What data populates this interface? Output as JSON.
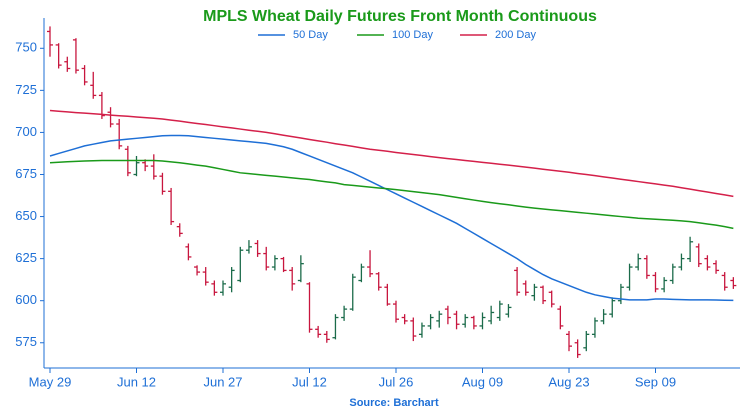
{
  "chart_data": {
    "type": "ohlc",
    "title": "MPLS Wheat Daily Futures Front Month Continuous",
    "source": "Source: Barchart",
    "categories": [
      "May 29",
      null,
      null,
      null,
      null,
      null,
      null,
      null,
      null,
      null,
      "Jun 12",
      null,
      null,
      null,
      null,
      null,
      null,
      null,
      null,
      null,
      "Jun 27",
      null,
      null,
      null,
      null,
      null,
      null,
      null,
      null,
      null,
      "Jul 12",
      null,
      null,
      null,
      null,
      null,
      null,
      null,
      null,
      null,
      "Jul 26",
      null,
      null,
      null,
      null,
      null,
      null,
      null,
      null,
      null,
      "Aug 09",
      null,
      null,
      null,
      null,
      null,
      null,
      null,
      null,
      null,
      "Aug 23",
      null,
      null,
      null,
      null,
      null,
      null,
      null,
      null,
      null,
      "Sep 09",
      null,
      null,
      null,
      null,
      null,
      null,
      null,
      null,
      null
    ],
    "open": [
      760,
      752,
      742,
      755,
      738,
      728,
      722,
      712,
      705,
      690,
      675,
      682,
      680,
      674,
      665,
      644,
      632,
      620,
      617,
      610,
      605,
      608,
      612,
      630,
      634,
      628,
      620,
      625,
      618,
      612,
      610,
      583,
      580,
      578,
      590,
      595,
      612,
      620,
      616,
      608,
      598,
      590,
      588,
      580,
      585,
      588,
      595,
      592,
      586,
      590,
      585,
      588,
      590,
      592,
      618,
      610,
      603,
      608,
      605,
      595,
      580,
      575,
      572,
      580,
      588,
      592,
      600,
      608,
      620,
      625,
      615,
      607,
      612,
      620,
      625,
      632,
      625,
      622,
      615,
      612
    ],
    "high": [
      763,
      753,
      745,
      756,
      740,
      736,
      724,
      715,
      708,
      692,
      686,
      684,
      687,
      676,
      667,
      646,
      634,
      621,
      620,
      612,
      612,
      620,
      632,
      636,
      636,
      632,
      627,
      626,
      620,
      627,
      611,
      585,
      582,
      592,
      597,
      616,
      622,
      630,
      617,
      610,
      600,
      592,
      590,
      587,
      592,
      594,
      597,
      594,
      592,
      591,
      593,
      597,
      600,
      598,
      620,
      612,
      610,
      609,
      606,
      597,
      582,
      577,
      582,
      590,
      595,
      602,
      610,
      622,
      628,
      627,
      617,
      614,
      622,
      628,
      638,
      634,
      627,
      624,
      617,
      614
    ],
    "low": [
      745,
      738,
      736,
      735,
      728,
      720,
      708,
      703,
      690,
      674,
      674,
      677,
      672,
      663,
      645,
      638,
      624,
      615,
      609,
      603,
      603,
      605,
      611,
      628,
      626,
      618,
      618,
      617,
      606,
      611,
      581,
      578,
      575,
      577,
      588,
      594,
      611,
      614,
      606,
      597,
      587,
      586,
      576,
      578,
      583,
      584,
      586,
      583,
      584,
      583,
      583,
      586,
      588,
      590,
      603,
      603,
      600,
      598,
      596,
      583,
      570,
      566,
      570,
      578,
      586,
      590,
      598,
      606,
      618,
      613,
      605,
      605,
      610,
      618,
      623,
      620,
      618,
      616,
      606,
      607
    ],
    "close": [
      752,
      740,
      738,
      737,
      730,
      722,
      710,
      705,
      692,
      676,
      682,
      680,
      674,
      665,
      647,
      640,
      626,
      617,
      611,
      605,
      610,
      618,
      630,
      632,
      628,
      620,
      625,
      618,
      610,
      622,
      583,
      580,
      577,
      590,
      595,
      614,
      620,
      616,
      608,
      598,
      589,
      588,
      579,
      585,
      590,
      592,
      590,
      586,
      590,
      585,
      590,
      593,
      598,
      596,
      605,
      605,
      608,
      600,
      598,
      585,
      573,
      568,
      580,
      588,
      592,
      600,
      608,
      620,
      625,
      615,
      607,
      612,
      620,
      625,
      635,
      622,
      620,
      618,
      608,
      609
    ],
    "up_color": "#1b6b4a",
    "down_color": "#c8163e",
    "series": [
      {
        "name": "50 Day",
        "color": "#1e6fd6",
        "values": [
          686,
          687.5,
          689,
          690.5,
          692,
          693,
          694,
          695,
          695.5,
          696,
          696.5,
          697,
          697.5,
          698,
          698.2,
          698.2,
          698,
          697.5,
          697,
          696.5,
          696,
          695.5,
          695,
          694.5,
          694,
          693.5,
          692.5,
          691.5,
          690,
          688,
          686,
          684,
          682,
          680,
          678,
          676,
          673.5,
          671,
          668.5,
          666,
          663.5,
          661,
          658.5,
          656,
          653.5,
          651,
          648.5,
          646,
          643,
          640,
          637,
          634,
          631,
          628,
          625,
          621.5,
          618.5,
          615.5,
          613,
          611,
          609,
          607,
          605,
          603.5,
          602.5,
          601.5,
          601,
          600.5,
          600.5,
          600.5,
          601,
          601,
          600.8,
          600.6,
          600.5,
          600.5,
          600.5,
          600.4,
          600.3,
          600.2
        ]
      },
      {
        "name": "100 Day",
        "color": "#1a9a1a",
        "values": [
          682,
          682.3,
          682.6,
          682.8,
          683,
          683.2,
          683.3,
          683.3,
          683.3,
          683.3,
          683.3,
          683.3,
          683.3,
          683,
          682.5,
          682,
          681.3,
          680.6,
          680,
          679,
          678,
          677,
          676,
          675.5,
          675,
          674.5,
          674,
          673.5,
          673,
          672.5,
          672,
          671.3,
          670.6,
          670,
          669,
          668.5,
          668,
          667.5,
          667,
          666.5,
          666,
          665.4,
          664.8,
          664.2,
          663.6,
          663,
          662.2,
          661.4,
          660.6,
          659.8,
          659,
          658.3,
          657.6,
          657,
          656.3,
          655.6,
          655,
          654.5,
          654,
          653.5,
          653,
          652.5,
          652,
          651.5,
          651,
          650.5,
          650,
          649.5,
          649,
          648.7,
          648.4,
          648.1,
          647.8,
          647.4,
          647,
          646.3,
          645.6,
          644.9,
          644,
          643
        ]
      },
      {
        "name": "200 Day",
        "color": "#d4204a",
        "values": [
          713,
          712.6,
          712.2,
          711.8,
          711.5,
          711.1,
          710.7,
          710.3,
          709.9,
          709.6,
          709.2,
          708.8,
          708.4,
          708,
          707.3,
          706.7,
          706,
          705.3,
          704.7,
          704,
          703.3,
          702.7,
          702,
          701.3,
          700.7,
          700,
          699.2,
          698.3,
          697.5,
          696.7,
          695.8,
          695,
          694.2,
          693.3,
          692.5,
          691.7,
          690.8,
          690,
          689.4,
          688.8,
          688.1,
          687.5,
          686.9,
          686.3,
          685.6,
          685,
          684.4,
          683.9,
          683.3,
          682.8,
          682.2,
          681.7,
          681.1,
          680.6,
          680,
          679.4,
          678.8,
          678.1,
          677.5,
          676.9,
          676.3,
          675.6,
          675,
          674.3,
          673.6,
          672.9,
          672.2,
          671.5,
          670.8,
          670.1,
          669.4,
          668.7,
          668,
          667.1,
          666.3,
          665.4,
          664.6,
          663.7,
          662.9,
          662
        ]
      }
    ],
    "ylim": [
      560,
      768
    ],
    "yticks": [
      575,
      600,
      625,
      650,
      675,
      700,
      725,
      750
    ],
    "grid": false
  }
}
